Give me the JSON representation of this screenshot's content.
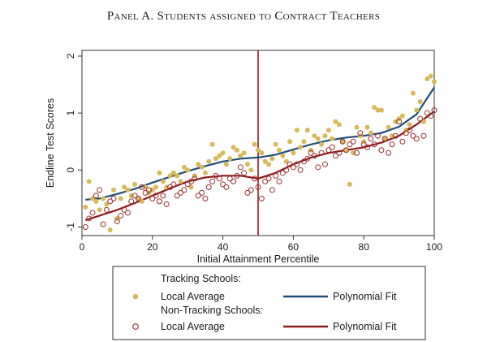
{
  "panel_title": "Panel A. Students assigned to Contract Teachers",
  "chart_data": {
    "type": "scatter",
    "title": "Panel A. Students assigned to Contract Teachers",
    "xlabel": "Initial Attainment Percentile",
    "ylabel": "Endline Test Scores",
    "xlim": [
      0,
      100
    ],
    "ylim": [
      -1.15,
      2.1
    ],
    "xticks": [
      0,
      20,
      40,
      60,
      80,
      100
    ],
    "yticks": [
      -1,
      0,
      1,
      2
    ],
    "cutoff_line": {
      "x": 50,
      "color": "#a0141e"
    },
    "legend_placement": "bottom",
    "legend": {
      "group1_header": "Tracking Schools:",
      "group2_header": "Non-Tracking Schools:",
      "local_average_label": "Local Average",
      "polynomial_fit_label": "Polynomial Fit"
    },
    "colors": {
      "tracking": "#d7b85a",
      "tracking_fit": "#1f4e79",
      "nontracking": "#9b3030",
      "nontracking_fit": "#8b1a1a"
    },
    "series": [
      {
        "name": "Tracking Schools: Local Average",
        "kind": "points",
        "x": [
          1,
          2,
          3,
          4,
          5,
          6,
          7,
          8,
          9,
          10,
          11,
          12,
          13,
          14,
          15,
          16,
          17,
          18,
          19,
          20,
          21,
          22,
          23,
          24,
          25,
          26,
          27,
          28,
          29,
          30,
          31,
          32,
          33,
          34,
          35,
          36,
          37,
          38,
          39,
          40,
          41,
          42,
          43,
          44,
          45,
          46,
          47,
          48,
          49,
          50,
          51,
          52,
          53,
          54,
          55,
          56,
          57,
          58,
          59,
          60,
          61,
          62,
          63,
          64,
          65,
          66,
          67,
          68,
          69,
          70,
          71,
          72,
          73,
          74,
          75,
          76,
          77,
          78,
          79,
          80,
          81,
          82,
          83,
          84,
          85,
          86,
          87,
          88,
          89,
          90,
          91,
          92,
          93,
          94,
          95,
          96,
          97,
          98,
          99,
          100
        ],
        "y": [
          -0.65,
          -0.2,
          -0.5,
          -0.55,
          -0.7,
          -0.5,
          -0.6,
          -1.05,
          -0.35,
          -0.85,
          -0.5,
          -0.3,
          -0.35,
          -0.45,
          -0.25,
          -0.5,
          -0.55,
          -0.3,
          -0.4,
          -0.35,
          -0.3,
          -0.05,
          -0.2,
          -0.3,
          -0.1,
          -0.05,
          -0.1,
          -0.2,
          0.05,
          0.0,
          -0.3,
          -0.1,
          0.1,
          0.05,
          -0.05,
          0.15,
          0.45,
          0.2,
          0.25,
          0.3,
          0.1,
          0.2,
          0.4,
          0.35,
          0.25,
          0.3,
          0.1,
          0.0,
          0.45,
          0.35,
          0.3,
          0.15,
          0.1,
          0.2,
          0.45,
          0.35,
          0.25,
          0.15,
          0.5,
          0.3,
          0.7,
          0.4,
          0.5,
          0.7,
          0.35,
          0.6,
          0.55,
          0.45,
          0.6,
          0.7,
          0.55,
          0.85,
          0.8,
          0.5,
          0.35,
          -0.25,
          0.3,
          0.75,
          0.6,
          0.5,
          0.75,
          0.65,
          1.1,
          1.05,
          1.05,
          0.55,
          0.75,
          0.6,
          0.85,
          0.9,
          0.95,
          0.7,
          0.8,
          1.35,
          1.05,
          1.2,
          0.85,
          1.6,
          1.65,
          1.55
        ]
      },
      {
        "name": "Non-Tracking Schools: Local Average",
        "kind": "points",
        "x": [
          1,
          2,
          3,
          4,
          5,
          6,
          7,
          8,
          9,
          10,
          11,
          12,
          13,
          14,
          15,
          16,
          17,
          18,
          19,
          20,
          21,
          22,
          23,
          24,
          25,
          26,
          27,
          28,
          29,
          30,
          31,
          32,
          33,
          34,
          35,
          36,
          37,
          38,
          39,
          40,
          41,
          42,
          43,
          44,
          45,
          46,
          47,
          48,
          49,
          50,
          51,
          52,
          53,
          54,
          55,
          56,
          57,
          58,
          59,
          60,
          61,
          62,
          63,
          64,
          65,
          66,
          67,
          68,
          69,
          70,
          71,
          72,
          73,
          74,
          75,
          76,
          77,
          78,
          79,
          80,
          81,
          82,
          83,
          84,
          85,
          86,
          87,
          88,
          89,
          90,
          91,
          92,
          93,
          94,
          95,
          96,
          97,
          98,
          99,
          100
        ],
        "y": [
          -1.0,
          -0.85,
          -0.75,
          -0.45,
          -0.35,
          -0.95,
          -0.7,
          -0.55,
          -0.5,
          -0.9,
          -0.8,
          -0.7,
          -0.75,
          -0.55,
          -0.45,
          -0.5,
          -0.3,
          -0.4,
          -0.35,
          -0.5,
          -0.45,
          -0.55,
          -0.45,
          -0.6,
          -0.3,
          -0.25,
          -0.45,
          -0.4,
          -0.35,
          -0.25,
          -0.2,
          -0.15,
          -0.45,
          -0.4,
          -0.5,
          -0.3,
          -0.2,
          -0.1,
          -0.15,
          -0.25,
          -0.3,
          -0.15,
          -0.2,
          -0.1,
          0.05,
          -0.05,
          -0.4,
          -0.35,
          -0.15,
          -0.3,
          -0.5,
          -0.2,
          -0.15,
          -0.35,
          -0.1,
          -0.2,
          -0.05,
          0.0,
          0.1,
          0.05,
          0.1,
          0.0,
          0.15,
          0.2,
          0.3,
          0.25,
          0.05,
          0.3,
          0.1,
          0.35,
          0.4,
          0.25,
          0.3,
          0.5,
          0.35,
          0.45,
          0.5,
          0.3,
          0.65,
          0.45,
          0.4,
          0.55,
          0.45,
          0.6,
          0.35,
          0.55,
          0.3,
          0.45,
          0.6,
          0.85,
          0.5,
          0.65,
          0.7,
          0.6,
          0.55,
          0.9,
          0.6,
          1.0,
          0.95,
          1.05
        ]
      },
      {
        "name": "Tracking Schools: Polynomial Fit",
        "kind": "line",
        "x": [
          1,
          5,
          10,
          15,
          20,
          25,
          30,
          35,
          40,
          45,
          50,
          55,
          60,
          65,
          70,
          75,
          80,
          85,
          90,
          95,
          100
        ],
        "y": [
          -0.52,
          -0.5,
          -0.42,
          -0.33,
          -0.22,
          -0.12,
          -0.02,
          0.07,
          0.15,
          0.2,
          0.22,
          0.27,
          0.36,
          0.45,
          0.52,
          0.57,
          0.6,
          0.65,
          0.76,
          0.98,
          1.45
        ]
      },
      {
        "name": "Non-Tracking Schools: Polynomial Fit",
        "kind": "line",
        "x": [
          1,
          5,
          10,
          15,
          20,
          25,
          30,
          35,
          40,
          45,
          50,
          55,
          60,
          65,
          70,
          75,
          80,
          85,
          90,
          95,
          100
        ],
        "y": [
          -0.88,
          -0.8,
          -0.7,
          -0.58,
          -0.45,
          -0.32,
          -0.2,
          -0.13,
          -0.1,
          -0.1,
          -0.15,
          -0.05,
          0.1,
          0.22,
          0.3,
          0.35,
          0.4,
          0.48,
          0.6,
          0.8,
          1.03
        ]
      }
    ]
  }
}
